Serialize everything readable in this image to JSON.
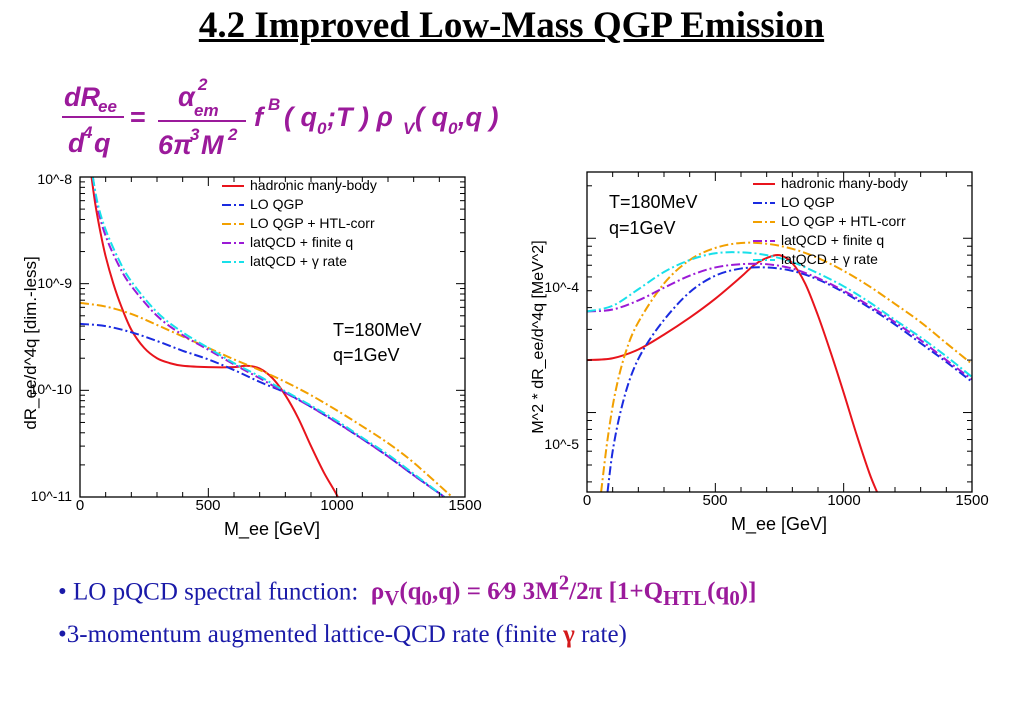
{
  "title": "4.2 Improved Low-Mass QGP Emission",
  "formula": {
    "text": "dR_ee/d^4q = α_em^2/(6π^3 M^2) f^B(q_0;T) ρ_V(q_0,q)",
    "lhs_num": "dR",
    "lhs_num_sub": "ee",
    "lhs_den": "d",
    "lhs_den_sup": "4",
    "lhs_den_var": "q",
    "equals": "=",
    "rhs_num": "α",
    "rhs_num_sub": "em",
    "rhs_num_sup": "2",
    "rhs_den_a": "6π",
    "rhs_den_sup1": "3",
    "rhs_den_b": "M",
    "rhs_den_sup2": "2",
    "f": "f",
    "f_sup": "B",
    "args1": "( q",
    "args1_sub": "0",
    "args1_rest": ";T ) ρ",
    "rho_sub": "V",
    "args2": "( q",
    "args2_sub": "0",
    "args2_rest": ",q )",
    "color": "#9b1a9b"
  },
  "colors": {
    "hadronic": "#e8141c",
    "lo_qgp": "#1a2be0",
    "htl": "#f2a000",
    "latqcd_q": "#9b1ad6",
    "latqcd_gamma": "#18e0ea",
    "bullet_text": "#1a1aa8",
    "formula": "#9b1a9b"
  },
  "bullets": [
    {
      "marker": "•",
      "text": "LO pQCD spectral function:",
      "formula_a": "ρ",
      "formula_a_sub": "V",
      "formula_b": "(q",
      "formula_b_sub": "0",
      "formula_c": ",q) = ",
      "formula_frac": "6⁄9",
      "formula_d": " 3M",
      "formula_d_sup": "2",
      "formula_e": "/2π [1+Q",
      "formula_e_sub": "HTL",
      "formula_f": "(q",
      "formula_f_sub": "0",
      "formula_g": ")]"
    },
    {
      "marker": "•",
      "text": "3-momentum augmented lattice-QCD rate (finite",
      "gamma": "γ",
      "tail": "rate)"
    }
  ],
  "chart_data": [
    {
      "type": "line",
      "title": "",
      "xlabel": "M_ee [GeV]",
      "ylabel": "dR_ee/d^4q   [dim.-less]",
      "x_ticks": [
        "0",
        "500",
        "1000",
        "1500"
      ],
      "y_ticks": [
        "10^-8",
        "10^-9",
        "10^-10",
        "10^-11"
      ],
      "xlim": [
        0,
        1500
      ],
      "ylim": [
        1e-11,
        1e-08
      ],
      "yscale": "log",
      "grid": false,
      "legend_position": "top-right",
      "annotation": [
        "T=180MeV",
        "q=1GeV"
      ],
      "series": [
        {
          "name": "hadronic many-body",
          "color": "#e8141c",
          "dash": "solid",
          "x": [
            45,
            60,
            80,
            100,
            130,
            160,
            200,
            250,
            300,
            350,
            400,
            500,
            600,
            650,
            700,
            750,
            800,
            850,
            900,
            950,
            1000,
            1020
          ],
          "y": [
            1e-08,
            5.5e-09,
            3e-09,
            1.8e-09,
            1e-09,
            6.2e-10,
            3.7e-10,
            2.5e-10,
            2e-10,
            1.8e-10,
            1.7e-10,
            1.65e-10,
            1.65e-10,
            1.7e-10,
            1.6e-10,
            1.3e-10,
            9e-11,
            5.5e-11,
            3e-11,
            1.7e-11,
            1.05e-11,
            8e-12
          ]
        },
        {
          "name": "LO QGP",
          "color": "#1a2be0",
          "dash": "dashdot",
          "x": [
            0,
            100,
            200,
            300,
            400,
            500,
            600,
            700,
            800,
            900,
            1000,
            1100,
            1200,
            1300,
            1420
          ],
          "y": [
            4.2e-10,
            4e-10,
            3.5e-10,
            2.9e-10,
            2.35e-10,
            1.95e-10,
            1.55e-10,
            1.2e-10,
            9.5e-11,
            7e-11,
            5e-11,
            3.5e-11,
            2.4e-11,
            1.6e-11,
            1e-11
          ]
        },
        {
          "name": "LO QGP + HTL-corr",
          "color": "#f2a000",
          "dash": "dashdot",
          "x": [
            0,
            100,
            200,
            300,
            400,
            500,
            600,
            700,
            800,
            900,
            1000,
            1100,
            1200,
            1300,
            1450
          ],
          "y": [
            6.6e-10,
            6.1e-10,
            5.2e-10,
            4.1e-10,
            3.2e-10,
            2.5e-10,
            1.95e-10,
            1.55e-10,
            1.2e-10,
            9e-11,
            6.5e-11,
            4.6e-11,
            3.2e-11,
            2.1e-11,
            1e-11
          ]
        },
        {
          "name": "latQCD + finite q",
          "color": "#9b1ad6",
          "dash": "dashdot",
          "x": [
            50,
            70,
            100,
            150,
            200,
            300,
            400,
            500,
            600,
            700,
            800,
            900,
            1000,
            1100,
            1200,
            1300,
            1420
          ],
          "y": [
            1e-08,
            5e-09,
            2.8e-09,
            1.5e-09,
            9.5e-10,
            5e-10,
            3.3e-10,
            2.4e-10,
            1.75e-10,
            1.3e-10,
            9.5e-11,
            7e-11,
            5e-11,
            3.5e-11,
            2.4e-11,
            1.6e-11,
            1e-11
          ]
        },
        {
          "name": "latQCD + γ rate",
          "color": "#18e0ea",
          "dash": "dashdot",
          "x": [
            50,
            70,
            100,
            150,
            200,
            300,
            400,
            500,
            600,
            700,
            800,
            900,
            1000,
            1100,
            1200,
            1300,
            1420
          ],
          "y": [
            1e-08,
            5.5e-09,
            3.2e-09,
            1.7e-09,
            1.05e-09,
            5.4e-10,
            3.5e-10,
            2.5e-10,
            1.8e-10,
            1.35e-10,
            9.8e-11,
            7.2e-11,
            5.2e-11,
            3.6e-11,
            2.5e-11,
            1.65e-11,
            1e-11
          ]
        }
      ]
    },
    {
      "type": "line",
      "title": "",
      "xlabel": "M_ee [GeV]",
      "ylabel": "M^2 * dR_ee/d^4q   [MeV^2]",
      "x_ticks": [
        "0",
        "500",
        "1000",
        "1500"
      ],
      "y_ticks": [
        "10^-4",
        "10^-5"
      ],
      "xlim": [
        0,
        1500
      ],
      "ylim": [
        3.5e-06,
        0.00024
      ],
      "yscale": "log",
      "grid": false,
      "legend_position": "top-right",
      "annotation": [
        "T=180MeV",
        "q=1GeV"
      ],
      "series": [
        {
          "name": "hadronic many-body",
          "color": "#e8141c",
          "dash": "solid",
          "x": [
            0,
            100,
            200,
            300,
            400,
            500,
            600,
            650,
            700,
            750,
            800,
            850,
            900,
            950,
            1000,
            1050,
            1100,
            1130
          ],
          "y": [
            2e-05,
            2.05e-05,
            2.3e-05,
            2.8e-05,
            3.5e-05,
            4.5e-05,
            6e-05,
            7e-05,
            7.7e-05,
            8e-05,
            7.2e-05,
            5.5e-05,
            3.6e-05,
            2.2e-05,
            1.3e-05,
            7.5e-06,
            4.5e-06,
            3.5e-06
          ]
        },
        {
          "name": "LO QGP",
          "color": "#1a2be0",
          "dash": "dashdot",
          "x": [
            80,
            100,
            130,
            170,
            220,
            300,
            400,
            500,
            600,
            700,
            800,
            900,
            1000,
            1100,
            1200,
            1300,
            1400,
            1500
          ],
          "y": [
            3.5e-06,
            6e-06,
            1e-05,
            1.6e-05,
            2.3e-05,
            3.4e-05,
            4.9e-05,
            6.1e-05,
            6.7e-05,
            6.8e-05,
            6.5e-05,
            5.8e-05,
            4.9e-05,
            4e-05,
            3.2e-05,
            2.5e-05,
            1.95e-05,
            1.5e-05
          ]
        },
        {
          "name": "LO QGP + HTL-corr",
          "color": "#f2a000",
          "dash": "dashdot",
          "x": [
            55,
            80,
            110,
            150,
            200,
            300,
            400,
            500,
            600,
            700,
            800,
            900,
            1000,
            1100,
            1200,
            1300,
            1400,
            1500
          ],
          "y": [
            3.5e-06,
            7e-06,
            1.3e-05,
            2.2e-05,
            3.3e-05,
            5.5e-05,
            7.5e-05,
            8.8e-05,
            9.4e-05,
            9.3e-05,
            8.7e-05,
            7.7e-05,
            6.5e-05,
            5.3e-05,
            4.2e-05,
            3.3e-05,
            2.5e-05,
            1.9e-05
          ]
        },
        {
          "name": "latQCD + finite q",
          "color": "#9b1ad6",
          "dash": "dashdot",
          "x": [
            0,
            100,
            200,
            300,
            400,
            500,
            600,
            700,
            800,
            900,
            1000,
            1100,
            1200,
            1300,
            1400,
            1500
          ],
          "y": [
            3.8e-05,
            3.9e-05,
            4.4e-05,
            5.2e-05,
            6.1e-05,
            6.8e-05,
            7.1e-05,
            7.1e-05,
            6.7e-05,
            5.9e-05,
            5e-05,
            4.1e-05,
            3.3e-05,
            2.6e-05,
            2e-05,
            1.55e-05
          ]
        },
        {
          "name": "latQCD + γ rate",
          "color": "#18e0ea",
          "dash": "dashdot",
          "x": [
            0,
            100,
            200,
            300,
            400,
            500,
            600,
            700,
            800,
            900,
            1000,
            1100,
            1200,
            1300,
            1400,
            1500
          ],
          "y": [
            3.8e-05,
            4.1e-05,
            5.1e-05,
            6.4e-05,
            7.5e-05,
            8.2e-05,
            8.3e-05,
            8e-05,
            7.3e-05,
            6.3e-05,
            5.3e-05,
            4.3e-05,
            3.4e-05,
            2.7e-05,
            2.1e-05,
            1.6e-05
          ]
        }
      ]
    }
  ]
}
